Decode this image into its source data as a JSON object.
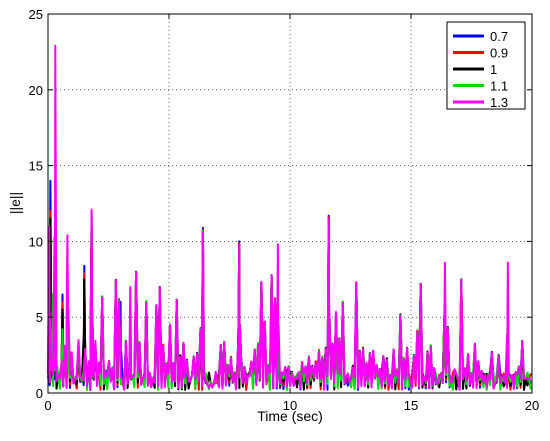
{
  "chart_data": {
    "type": "line",
    "title": "",
    "xlabel": "Time (sec)",
    "ylabel": "||e||",
    "xlim": [
      0,
      20
    ],
    "ylim": [
      0,
      25
    ],
    "xticks": [
      0,
      5,
      10,
      15,
      20
    ],
    "yticks": [
      0,
      5,
      10,
      15,
      20,
      25
    ],
    "grid": true,
    "legend_position": "top-right",
    "series": [
      {
        "name": "0.7",
        "color": "#0000ff",
        "peaks": [
          [
            0.1,
            14.0
          ],
          [
            0.25,
            2.0
          ],
          [
            0.3,
            5.3
          ],
          [
            0.6,
            6.5
          ],
          [
            1.5,
            8.4
          ],
          [
            1.8,
            11.0
          ],
          [
            3.0,
            6.0
          ],
          [
            6.4,
            10.9
          ],
          [
            7.9,
            10.0
          ],
          [
            11.6,
            11.7
          ]
        ]
      },
      {
        "name": "0.9",
        "color": "#ff0000",
        "peaks": [
          [
            0.1,
            12.0
          ],
          [
            0.3,
            5.0
          ],
          [
            0.6,
            6.0
          ],
          [
            1.5,
            7.9
          ],
          [
            1.8,
            11.5
          ],
          [
            6.4,
            10.8
          ],
          [
            7.9,
            9.9
          ],
          [
            11.6,
            11.6
          ]
        ]
      },
      {
        "name": "1",
        "color": "#000000",
        "peaks": [
          [
            0.1,
            11.5
          ],
          [
            0.3,
            4.8
          ],
          [
            0.6,
            5.5
          ],
          [
            1.5,
            7.5
          ],
          [
            1.8,
            11.8
          ],
          [
            6.4,
            10.7
          ],
          [
            7.9,
            9.8
          ],
          [
            11.6,
            11.5
          ]
        ]
      },
      {
        "name": "1.1",
        "color": "#00dd00",
        "peaks": [
          [
            0.05,
            10.0
          ],
          [
            0.2,
            6.5
          ],
          [
            0.35,
            4.0
          ],
          [
            0.6,
            4.2
          ],
          [
            0.8,
            3.0
          ],
          [
            6.4,
            10.7
          ],
          [
            11.6,
            11.5
          ]
        ]
      },
      {
        "name": "1.3",
        "color": "#ff00ff",
        "peaks": [
          [
            0.05,
            11.0
          ],
          [
            0.3,
            22.9
          ],
          [
            0.8,
            10.4
          ],
          [
            1.8,
            12.1
          ],
          [
            3.4,
            7.0
          ],
          [
            6.4,
            10.6
          ],
          [
            7.9,
            9.8
          ],
          [
            9.5,
            9.8
          ],
          [
            11.6,
            11.5
          ],
          [
            16.4,
            8.6
          ],
          [
            19.0,
            8.6
          ]
        ]
      }
    ]
  }
}
